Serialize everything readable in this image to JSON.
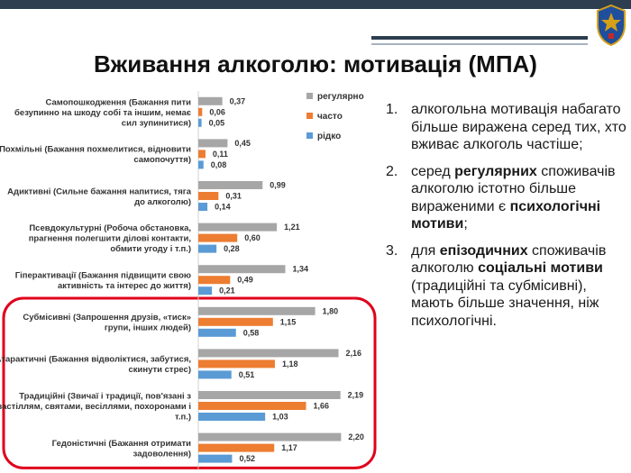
{
  "slide": {
    "title": "Вживання алкоголю: мотивація (МПА)"
  },
  "colors": {
    "regular": "#a6a6a6",
    "often": "#ed7d31",
    "rare": "#5b9bd5",
    "highlight": "#e0001b"
  },
  "notes": [
    {
      "number": "1.",
      "parts": [
        {
          "text": "алкогольна мотивація набагато більше виражена серед тих, хто вживає алкоголь частіше;",
          "bold": false
        }
      ]
    },
    {
      "number": "2.",
      "parts": [
        {
          "text": "серед ",
          "bold": false
        },
        {
          "text": "регулярних",
          "bold": true
        },
        {
          "text": " споживачів алкоголю істотно більше вираженими є ",
          "bold": false
        },
        {
          "text": "психологічні мотиви",
          "bold": true
        },
        {
          "text": ";",
          "bold": false
        }
      ]
    },
    {
      "number": "3.",
      "parts": [
        {
          "text": "для ",
          "bold": false
        },
        {
          "text": "епізодичних",
          "bold": true
        },
        {
          "text": " споживачів алкоголю ",
          "bold": false
        },
        {
          "text": "соціальні мотиви",
          "bold": true
        },
        {
          "text": " (традиційні та субмісивні), мають більше значення, ніж психологічні.",
          "bold": false
        }
      ]
    }
  ],
  "chart_data": {
    "type": "bar",
    "orientation": "horizontal",
    "categories": [
      [
        "Самопошкодження (Бажання пити",
        "безупинно на шкоду собі та іншим, немає",
        "сил зупинитися)"
      ],
      [
        "Похмільні (Бажання похмелитися, відновити",
        "самопочуття)"
      ],
      [
        "Адиктивні (Сильне бажання напитися, тяга",
        "до алкоголю)"
      ],
      [
        "Псевдокультурні (Робоча обстановка,",
        "прагнення полегшити ділові контакти,",
        "обмити угоду і т.п.)"
      ],
      [
        "Гіпер­активації (Бажання підвищити свою",
        "активність та інтерес до життя)"
      ],
      [
        "Субмісивні (Запрошення друзів, «тиск»",
        "групи, інших людей)"
      ],
      [
        "Атарактичні (Бажання відволіктися, забутися,",
        "скинути стрес)"
      ],
      [
        "Традиційні (Звичаї і традиції, пов'язані з",
        "застіллям, святами, весіллями, похоронами і",
        "т.п.)"
      ],
      [
        "Гедоністичні (Бажання отримати",
        "задоволення)"
      ]
    ],
    "series": [
      {
        "name": "регулярно",
        "color": "#a6a6a6",
        "values": [
          0.37,
          0.45,
          0.99,
          1.21,
          1.34,
          1.8,
          2.16,
          2.19,
          2.2
        ],
        "labels": [
          "0,37",
          "0,45",
          "0,99",
          "1,21",
          "1,34",
          "1,80",
          "2,16",
          "2,19",
          "2,20"
        ]
      },
      {
        "name": "часто",
        "color": "#ed7d31",
        "values": [
          0.06,
          0.11,
          0.31,
          0.6,
          0.49,
          1.15,
          1.18,
          1.66,
          1.17
        ],
        "labels": [
          "0,06",
          "0,11",
          "0,31",
          "0,60",
          "0,49",
          "1,15",
          "1,18",
          "1,66",
          "1,17"
        ]
      },
      {
        "name": "рідко",
        "color": "#5b9bd5",
        "values": [
          0.05,
          0.08,
          0.14,
          0.28,
          0.21,
          0.58,
          0.51,
          1.03,
          0.52
        ],
        "labels": [
          "0,05",
          "0,08",
          "0,14",
          "0,28",
          "0,21",
          "0,58",
          "0,51",
          "1,03",
          "0,52"
        ]
      }
    ],
    "legend_position": "top-right",
    "grid": false,
    "highlighted_categories": [
      5,
      6,
      7,
      8
    ]
  }
}
